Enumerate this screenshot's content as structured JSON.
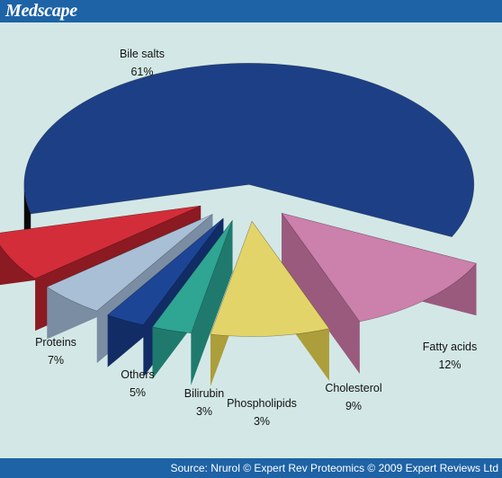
{
  "brand": "Medscape",
  "source": "Source: Nrurol © Expert Rev Proteomics © 2009 Expert Reviews Ltd",
  "colors": {
    "background": "#d3e8e6",
    "bars": "#1e63a6"
  },
  "chart_data": {
    "type": "pie",
    "title": "",
    "style": "3d-exploded",
    "slices": [
      {
        "label": "Bile salts",
        "pct_label": "61%",
        "value": 61,
        "color": "#1d3f86",
        "side": "#070707"
      },
      {
        "label": "Fatty acids",
        "pct_label": "12%",
        "value": 12,
        "color": "#cc80ac",
        "side": "#9a5a7e"
      },
      {
        "label": "Cholesterol",
        "pct_label": "9%",
        "value": 9,
        "color": "#e3d46a",
        "side": "#ad9e3c"
      },
      {
        "label": "Phospholipids",
        "pct_label": "3%",
        "value": 3,
        "color": "#2fa594",
        "side": "#1f7a6d"
      },
      {
        "label": "Bilirubin",
        "pct_label": "3%",
        "value": 3,
        "color": "#1d4596",
        "side": "#122c66"
      },
      {
        "label": "Others",
        "pct_label": "5%",
        "value": 5,
        "color": "#a9bfd6",
        "side": "#7a8da3"
      },
      {
        "label": "Proteins",
        "pct_label": "7%",
        "value": 7,
        "color": "#d32d3a",
        "side": "#8b1a22"
      }
    ]
  }
}
